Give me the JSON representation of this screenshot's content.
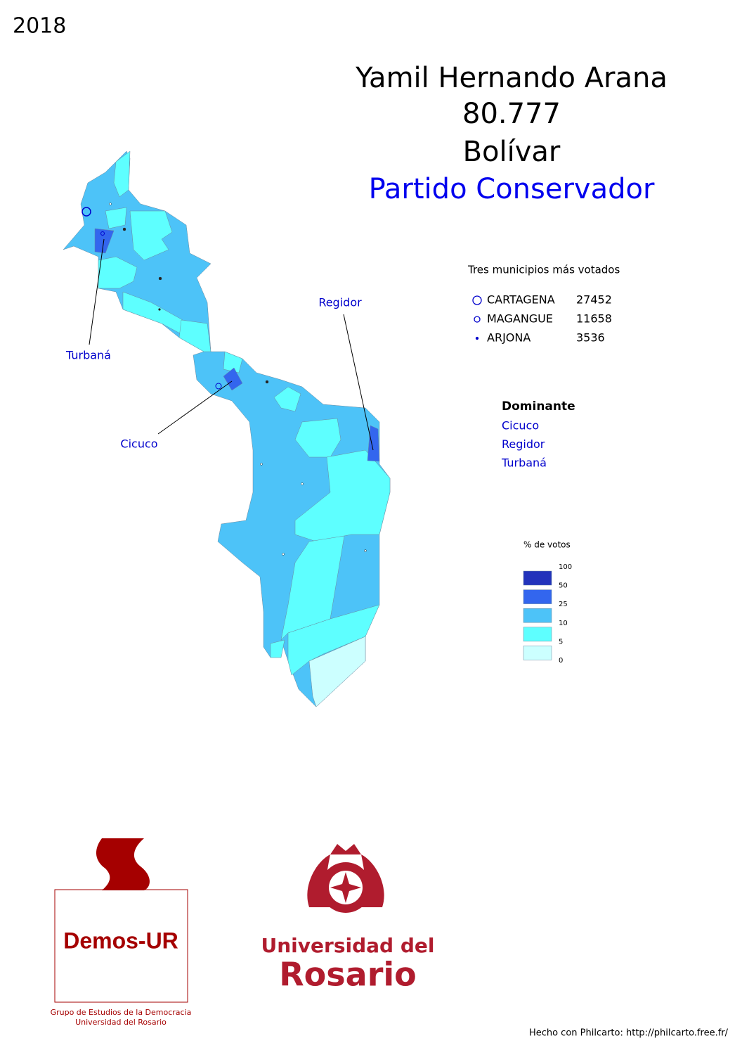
{
  "year": "2018",
  "header": {
    "candidate": "Yamil Hernando Arana",
    "votes": "80.777",
    "department": "Bolívar",
    "party": "Partido Conservador"
  },
  "map_labels": [
    "Turbaná",
    "Regidor",
    "Cicuco"
  ],
  "top_municipalities": {
    "title": "Tres municipios más votados",
    "rows": [
      {
        "name": "CARTAGENA",
        "votes": 27452
      },
      {
        "name": "MAGANGUE",
        "votes": 11658
      },
      {
        "name": "ARJONA",
        "votes": 3536
      }
    ]
  },
  "dominant": {
    "title": "Dominante",
    "items": [
      "Cicuco",
      "Regidor",
      "Turbaná"
    ]
  },
  "legend": {
    "title": "% de votos",
    "breaks": [
      100,
      50,
      25,
      10,
      5,
      0
    ],
    "colors": [
      "#2233bb",
      "#3366ee",
      "#4dc3f8",
      "#5effff",
      "#ccffff"
    ]
  },
  "logos": {
    "demos": "Demos-UR",
    "demos_caption": [
      "Grupo de Estudios de la Democracia",
      "Universidad del Rosario"
    ],
    "rosario": [
      "Universidad del",
      "Rosario"
    ]
  },
  "footer": "Hecho con Philcarto: http://philcarto.free.fr/"
}
